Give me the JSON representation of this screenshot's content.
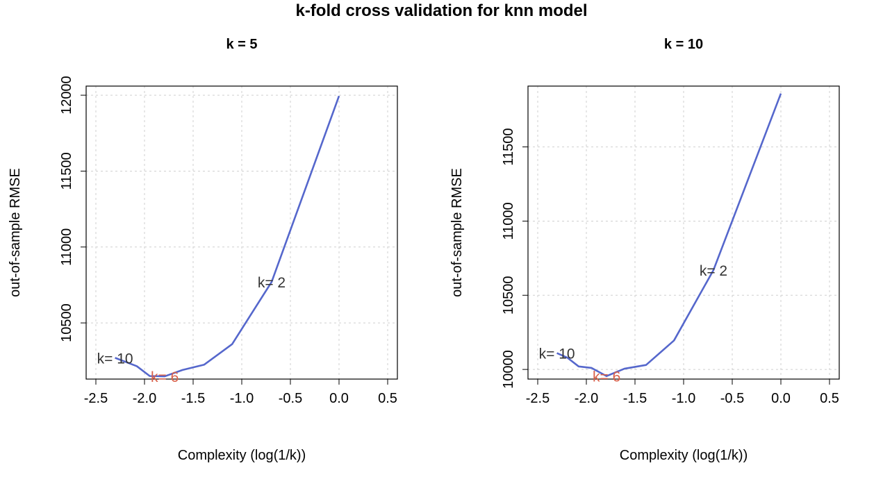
{
  "title": "k-fold cross validation for knn model",
  "colors": {
    "line": "#5567cc",
    "label": "#333333",
    "highlight": "#d9604a",
    "grid": "#cfcfcf"
  },
  "chart_data": [
    {
      "type": "line",
      "title": "k = 5",
      "xlabel": "Complexity (log(1/k))",
      "ylabel": "out-of-sample RMSE",
      "xlim": [
        -2.6,
        0.6
      ],
      "ylim": [
        10130,
        12060
      ],
      "xticks": [
        "-2.5",
        "-2.0",
        "-1.5",
        "-1.0",
        "-0.5",
        "0.0",
        "0.5"
      ],
      "yticks": [
        "10500",
        "11000",
        "11500",
        "12000"
      ],
      "grid": true,
      "series": [
        {
          "x": [
            -2.303,
            -2.079,
            -1.946,
            -1.792,
            -1.609,
            -1.386,
            -1.099,
            -0.693,
            0.0
          ],
          "y": [
            10270,
            10215,
            10150,
            10148,
            10190,
            10225,
            10360,
            10770,
            11995
          ]
        }
      ],
      "annotations": [
        {
          "text": "k= 10",
          "x": -2.303,
          "y": 10270,
          "highlight": false
        },
        {
          "text": "k= 6",
          "x": -1.792,
          "y": 10148,
          "highlight": true
        },
        {
          "text": "k= 2",
          "x": -0.693,
          "y": 10770,
          "highlight": false
        }
      ]
    },
    {
      "type": "line",
      "title": "k = 10",
      "xlabel": "Complexity (log(1/k))",
      "ylabel": "out-of-sample RMSE",
      "xlim": [
        -2.6,
        0.6
      ],
      "ylim": [
        9935,
        11910
      ],
      "xticks": [
        "-2.5",
        "-2.0",
        "-1.5",
        "-1.0",
        "-0.5",
        "0.0",
        "0.5"
      ],
      "yticks": [
        "10000",
        "10500",
        "11000",
        "11500"
      ],
      "grid": true,
      "series": [
        {
          "x": [
            -2.303,
            -2.197,
            -2.079,
            -1.946,
            -1.792,
            -1.609,
            -1.386,
            -1.099,
            -0.693,
            0.0
          ],
          "y": [
            10110,
            10080,
            10020,
            10010,
            9955,
            10005,
            10030,
            10195,
            10670,
            11860
          ]
        }
      ],
      "annotations": [
        {
          "text": "k= 10",
          "x": -2.303,
          "y": 10110,
          "highlight": false
        },
        {
          "text": "k= 6",
          "x": -1.792,
          "y": 9955,
          "highlight": true
        },
        {
          "text": "k= 2",
          "x": -0.693,
          "y": 10670,
          "highlight": false
        }
      ]
    }
  ]
}
